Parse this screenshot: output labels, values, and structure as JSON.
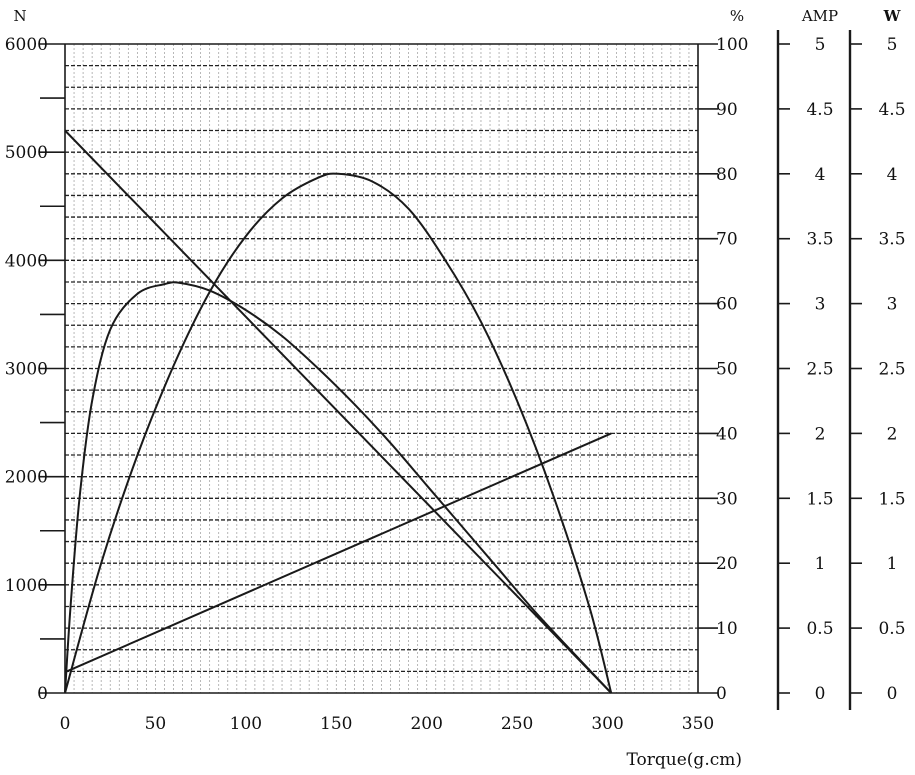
{
  "chart_data": {
    "type": "line",
    "xlabel": "Torque(g.cm)",
    "xlim": [
      0,
      350
    ],
    "x_ticks": [
      "0",
      "50",
      "100",
      "150",
      "200",
      "250",
      "300",
      "350"
    ],
    "grid": true,
    "axes": {
      "speed": {
        "unit": "N",
        "ylim": [
          0,
          6000
        ],
        "ticks": [
          "0",
          "1000",
          "2000",
          "3000",
          "4000",
          "5000",
          "6000"
        ]
      },
      "efficiency": {
        "unit": "%",
        "ylim": [
          0,
          100
        ],
        "ticks": [
          "0",
          "10",
          "20",
          "30",
          "40",
          "50",
          "60",
          "70",
          "80",
          "90",
          "100"
        ]
      },
      "current": {
        "unit": "AMP",
        "ylim": [
          0,
          5
        ],
        "ticks": [
          "0",
          "0.5",
          "1",
          "1.5",
          "2",
          "2.5",
          "3",
          "3.5",
          "4",
          "4.5",
          "5"
        ]
      },
      "power": {
        "unit": "W",
        "ylim": [
          0,
          5
        ],
        "ticks": [
          "0",
          "0.5",
          "1",
          "1.5",
          "2",
          "2.5",
          "3",
          "3.5",
          "4",
          "4.5",
          "5"
        ]
      }
    },
    "series": [
      {
        "axis": "speed",
        "x": [
          0,
          302
        ],
        "y": [
          5200,
          0
        ]
      },
      {
        "axis": "current",
        "x": [
          0,
          302
        ],
        "y": [
          0.16,
          2.0
        ]
      },
      {
        "axis": "power",
        "x": [
          0,
          20,
          40,
          60,
          80,
          100,
          120,
          140,
          151,
          170,
          190,
          210,
          230,
          250,
          270,
          290,
          302
        ],
        "y": [
          0,
          1.0,
          1.83,
          2.52,
          3.09,
          3.52,
          3.81,
          3.97,
          4.0,
          3.94,
          3.73,
          3.34,
          2.86,
          2.25,
          1.52,
          0.66,
          0
        ]
      },
      {
        "axis": "efficiency",
        "x": [
          0,
          3,
          8,
          15,
          25,
          40,
          55,
          63,
          80,
          100,
          120,
          140,
          160,
          180,
          200,
          220,
          240,
          260,
          280,
          302
        ],
        "y": [
          0,
          13,
          30,
          45,
          56,
          61.5,
          63,
          63.2,
          62,
          59,
          55,
          50,
          44.5,
          38.5,
          32,
          25.5,
          19,
          12.5,
          6.5,
          0
        ]
      }
    ]
  }
}
